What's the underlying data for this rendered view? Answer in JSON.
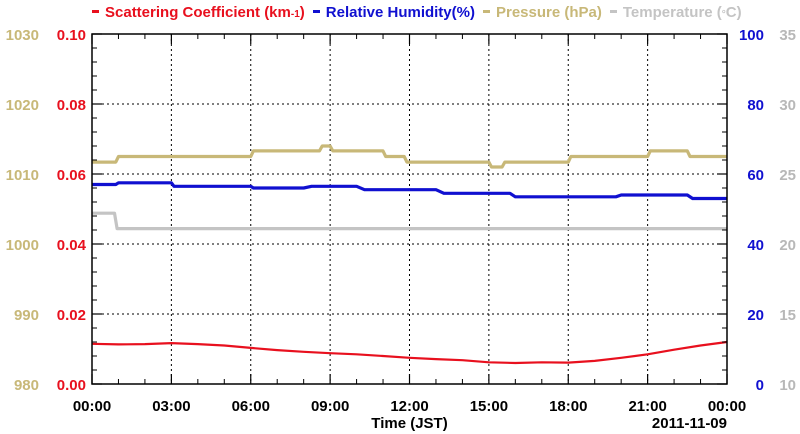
{
  "chart_data": {
    "type": "line",
    "legend_placement": "top",
    "grid": true,
    "x": {
      "label": "Time (JST)",
      "date_label": "2011-11-09",
      "ticks": [
        "00:00",
        "03:00",
        "06:00",
        "09:00",
        "12:00",
        "15:00",
        "18:00",
        "21:00",
        "00:00"
      ],
      "range_hours": [
        0,
        24
      ]
    },
    "axes": {
      "pressure": {
        "ticks": [
          "980",
          "990",
          "1000",
          "1010",
          "1020",
          "1030"
        ],
        "range": [
          980,
          1030
        ],
        "color": "#c8b878"
      },
      "scattering": {
        "ticks": [
          "0.00",
          "0.02",
          "0.04",
          "0.06",
          "0.08",
          "0.10"
        ],
        "range": [
          0,
          0.1
        ],
        "color": "#e8101e"
      },
      "humidity": {
        "ticks": [
          "0",
          "20",
          "40",
          "60",
          "80",
          "100"
        ],
        "range": [
          0,
          100
        ],
        "color": "#1010d0"
      },
      "temperature": {
        "ticks": [
          "10",
          "15",
          "20",
          "25",
          "30",
          "35"
        ],
        "range": [
          10,
          35
        ],
        "color": "#b8b8b8"
      }
    },
    "series": [
      {
        "name": "Scattering Coefficient (km",
        "name_sup": "-1",
        "name_end": ")",
        "axis": "scattering",
        "color": "#e8101e",
        "x": [
          0,
          1,
          2,
          3,
          4,
          5,
          6,
          7,
          8,
          9,
          10,
          11,
          12,
          13,
          14,
          15,
          16,
          17,
          18,
          19,
          20,
          21,
          22,
          23,
          24
        ],
        "y": [
          0.0115,
          0.0113,
          0.0114,
          0.0117,
          0.0114,
          0.011,
          0.0103,
          0.0097,
          0.0092,
          0.0088,
          0.0085,
          0.008,
          0.0075,
          0.0071,
          0.0068,
          0.0062,
          0.006,
          0.0062,
          0.0061,
          0.0066,
          0.0075,
          0.0085,
          0.0098,
          0.011,
          0.012
        ]
      },
      {
        "name": "Relative Humidity(%)",
        "axis": "humidity",
        "color": "#1010d0",
        "x": [
          0,
          0.9,
          1.0,
          3.0,
          3.1,
          6.0,
          6.1,
          8.0,
          8.3,
          10.0,
          10.3,
          13.0,
          13.3,
          15.8,
          16.0,
          19.8,
          20.0,
          22.5,
          22.7,
          24
        ],
        "y": [
          57.0,
          57.0,
          57.5,
          57.5,
          56.5,
          56.5,
          56.0,
          56.0,
          56.5,
          56.5,
          55.5,
          55.5,
          54.5,
          54.5,
          53.5,
          53.5,
          54.0,
          54.0,
          53.0,
          53.0
        ]
      },
      {
        "name": "Pressure (hPa)",
        "axis": "pressure",
        "color": "#c8b878",
        "x": [
          0,
          0.9,
          1.0,
          6.0,
          6.1,
          8.6,
          8.7,
          9.0,
          9.1,
          11.0,
          11.1,
          11.8,
          11.9,
          15.0,
          15.1,
          15.5,
          15.6,
          18.0,
          18.1,
          21.0,
          21.1,
          22.5,
          22.6,
          24
        ],
        "y": [
          1011.7,
          1011.7,
          1012.5,
          1012.5,
          1013.3,
          1013.3,
          1014.0,
          1014.0,
          1013.3,
          1013.3,
          1012.5,
          1012.5,
          1011.7,
          1011.7,
          1011.0,
          1011.0,
          1011.7,
          1011.7,
          1012.5,
          1012.5,
          1013.3,
          1013.3,
          1012.5,
          1012.5
        ]
      },
      {
        "name": "Temperature (",
        "name_sup": "°",
        "name_end": "C)",
        "axis": "temperature",
        "color": "#c4c4c4",
        "x": [
          0,
          0.85,
          0.95,
          24
        ],
        "y": [
          22.2,
          22.2,
          21.1,
          21.1
        ]
      }
    ]
  }
}
